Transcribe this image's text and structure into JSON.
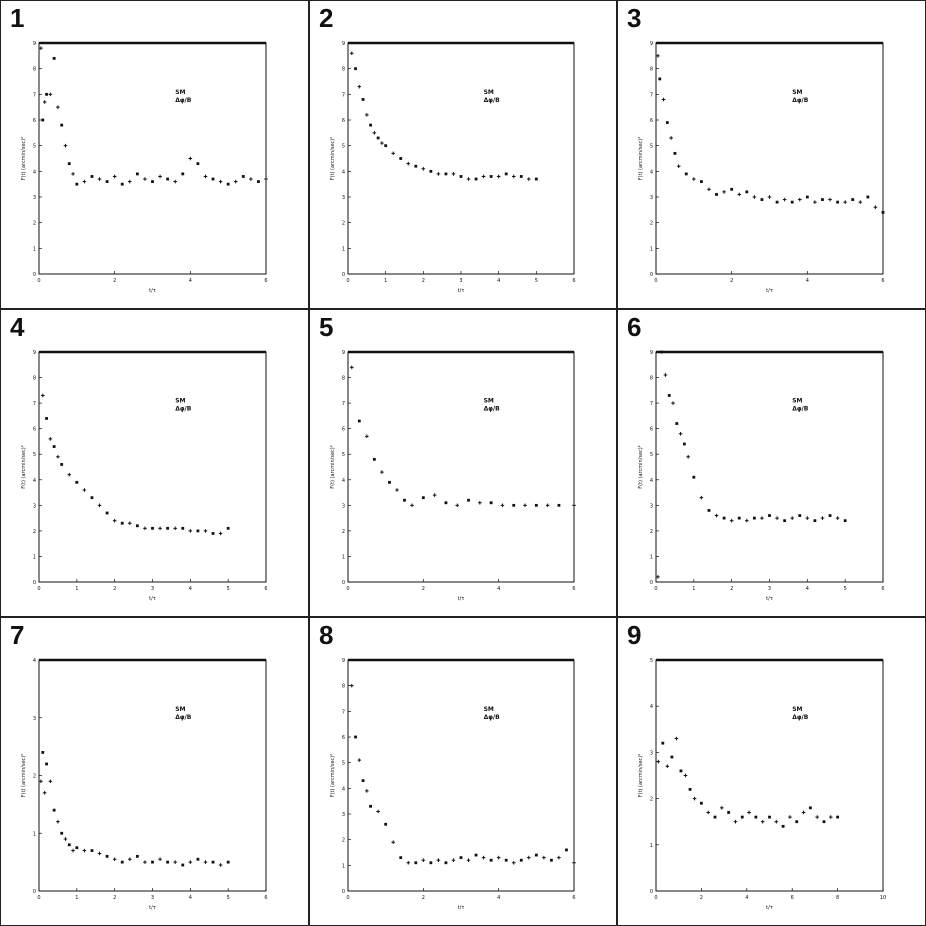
{
  "chart_data": [
    {
      "panel": "1",
      "type": "scatter",
      "xlabel": "t/τ",
      "ylabel": "F(t) (arcmin/sec)²",
      "xlim": [
        0,
        6
      ],
      "ylim": [
        0,
        9
      ],
      "xticks": [
        "0",
        "2",
        "4",
        "6"
      ],
      "yticks": [
        "0",
        "1",
        "2",
        "3",
        "4",
        "5",
        "6",
        "7",
        "8",
        "9"
      ],
      "legend": [
        "SM",
        "Δφ/B"
      ],
      "x": [
        0.05,
        0.1,
        0.15,
        0.2,
        0.3,
        0.4,
        0.5,
        0.6,
        0.7,
        0.8,
        0.9,
        1.0,
        1.2,
        1.4,
        1.6,
        1.8,
        2.0,
        2.2,
        2.4,
        2.6,
        2.8,
        3.0,
        3.2,
        3.4,
        3.6,
        3.8,
        4.0,
        4.2,
        4.4,
        4.6,
        4.8,
        5.0,
        5.2,
        5.4,
        5.6,
        5.8,
        6.0
      ],
      "y": [
        8.8,
        6.0,
        6.7,
        7.0,
        7.0,
        8.4,
        6.5,
        5.8,
        5.0,
        4.3,
        3.9,
        3.5,
        3.6,
        3.8,
        3.7,
        3.6,
        3.8,
        3.5,
        3.6,
        3.9,
        3.7,
        3.6,
        3.8,
        3.7,
        3.6,
        3.9,
        4.5,
        4.3,
        3.8,
        3.7,
        3.6,
        3.5,
        3.6,
        3.8,
        3.7,
        3.6,
        3.7
      ]
    },
    {
      "panel": "2",
      "type": "scatter",
      "xlabel": "t/τ",
      "ylabel": "F(t) (arcmin/sec)²",
      "xlim": [
        0,
        6
      ],
      "ylim": [
        0,
        9
      ],
      "xticks": [
        "0",
        "1",
        "2",
        "3",
        "4",
        "5",
        "6"
      ],
      "yticks": [
        "0",
        "1",
        "2",
        "3",
        "4",
        "5",
        "6",
        "7",
        "8",
        "9"
      ],
      "legend": [
        "SM",
        "Δφ/B"
      ],
      "x": [
        0.1,
        0.2,
        0.3,
        0.4,
        0.5,
        0.6,
        0.7,
        0.8,
        0.9,
        1.0,
        1.2,
        1.4,
        1.6,
        1.8,
        2.0,
        2.2,
        2.4,
        2.6,
        2.8,
        3.0,
        3.2,
        3.4,
        3.6,
        3.8,
        4.0,
        4.2,
        4.4,
        4.6,
        4.8,
        5.0
      ],
      "y": [
        8.6,
        8.0,
        7.3,
        6.8,
        6.2,
        5.8,
        5.5,
        5.3,
        5.1,
        5.0,
        4.7,
        4.5,
        4.3,
        4.2,
        4.1,
        4.0,
        3.9,
        3.9,
        3.9,
        3.8,
        3.7,
        3.7,
        3.8,
        3.8,
        3.8,
        3.9,
        3.8,
        3.8,
        3.7,
        3.7
      ]
    },
    {
      "panel": "3",
      "type": "scatter",
      "xlabel": "t/τ",
      "ylabel": "F(t) (arcmin/sec)²",
      "xlim": [
        0,
        6
      ],
      "ylim": [
        0,
        9
      ],
      "xticks": [
        "0",
        "2",
        "4",
        "6"
      ],
      "yticks": [
        "0",
        "1",
        "2",
        "3",
        "4",
        "5",
        "6",
        "7",
        "8",
        "9"
      ],
      "legend": [
        "SM",
        "Δφ/B"
      ],
      "x": [
        0.05,
        0.1,
        0.2,
        0.3,
        0.4,
        0.5,
        0.6,
        0.8,
        1.0,
        1.2,
        1.4,
        1.6,
        1.8,
        2.0,
        2.2,
        2.4,
        2.6,
        2.8,
        3.0,
        3.2,
        3.4,
        3.6,
        3.8,
        4.0,
        4.2,
        4.4,
        4.6,
        4.8,
        5.0,
        5.2,
        5.4,
        5.6,
        5.8,
        6.0
      ],
      "y": [
        8.5,
        7.6,
        6.8,
        5.9,
        5.3,
        4.7,
        4.2,
        3.9,
        3.7,
        3.6,
        3.3,
        3.1,
        3.2,
        3.3,
        3.1,
        3.2,
        3.0,
        2.9,
        3.0,
        2.8,
        2.9,
        2.8,
        2.9,
        3.0,
        2.8,
        2.9,
        2.9,
        2.8,
        2.8,
        2.9,
        2.8,
        3.0,
        2.6,
        2.4
      ]
    },
    {
      "panel": "4",
      "type": "scatter",
      "xlabel": "t/τ",
      "ylabel": "F(t) (arcmin/sec)²",
      "xlim": [
        0,
        6
      ],
      "ylim": [
        0,
        9
      ],
      "xticks": [
        "0",
        "1",
        "2",
        "3",
        "4",
        "5",
        "6"
      ],
      "yticks": [
        "0",
        "1",
        "2",
        "3",
        "4",
        "5",
        "6",
        "7",
        "8",
        "9"
      ],
      "legend": [
        "SM",
        "Δφ/B"
      ],
      "x": [
        0.1,
        0.2,
        0.3,
        0.4,
        0.5,
        0.6,
        0.8,
        1.0,
        1.2,
        1.4,
        1.6,
        1.8,
        2.0,
        2.2,
        2.4,
        2.6,
        2.8,
        3.0,
        3.2,
        3.4,
        3.6,
        3.8,
        4.0,
        4.2,
        4.4,
        4.6,
        4.8,
        5.0
      ],
      "y": [
        7.3,
        6.4,
        5.6,
        5.3,
        4.9,
        4.6,
        4.2,
        3.9,
        3.6,
        3.3,
        3.0,
        2.7,
        2.4,
        2.3,
        2.3,
        2.2,
        2.1,
        2.1,
        2.1,
        2.1,
        2.1,
        2.1,
        2.0,
        2.0,
        2.0,
        1.9,
        1.9,
        2.1
      ]
    },
    {
      "panel": "5",
      "type": "scatter",
      "xlabel": "t/τ",
      "ylabel": "F(t) (arcmin/sec)²",
      "xlim": [
        0,
        6
      ],
      "ylim": [
        0,
        9
      ],
      "xticks": [
        "0",
        "2",
        "4",
        "6"
      ],
      "yticks": [
        "0",
        "1",
        "2",
        "3",
        "4",
        "5",
        "6",
        "7",
        "8",
        "9"
      ],
      "legend": [
        "SM",
        "Δφ/B"
      ],
      "x": [
        0.1,
        0.3,
        0.5,
        0.7,
        0.9,
        1.1,
        1.3,
        1.5,
        1.7,
        2.0,
        2.3,
        2.6,
        2.9,
        3.2,
        3.5,
        3.8,
        4.1,
        4.4,
        4.7,
        5.0,
        5.3,
        5.6,
        6.0
      ],
      "y": [
        8.4,
        6.3,
        5.7,
        4.8,
        4.3,
        3.9,
        3.6,
        3.2,
        3.0,
        3.3,
        3.4,
        3.1,
        3.0,
        3.2,
        3.1,
        3.1,
        3.0,
        3.0,
        3.0,
        3.0,
        3.0,
        3.0,
        3.0
      ]
    },
    {
      "panel": "6",
      "type": "scatter",
      "xlabel": "t/τ",
      "ylabel": "F(t) (arcmin/sec)²",
      "xlim": [
        0,
        6
      ],
      "ylim": [
        0,
        9
      ],
      "xticks": [
        "0",
        "1",
        "2",
        "3",
        "4",
        "5",
        "6"
      ],
      "yticks": [
        "0",
        "1",
        "2",
        "3",
        "4",
        "5",
        "6",
        "7",
        "8",
        "9"
      ],
      "legend": [
        "SM",
        "Δφ/B"
      ],
      "x": [
        0.05,
        0.15,
        0.25,
        0.35,
        0.45,
        0.55,
        0.65,
        0.75,
        0.85,
        1.0,
        1.2,
        1.4,
        1.6,
        1.8,
        2.0,
        2.2,
        2.4,
        2.6,
        2.8,
        3.0,
        3.2,
        3.4,
        3.6,
        3.8,
        4.0,
        4.2,
        4.4,
        4.6,
        4.8,
        5.0
      ],
      "y": [
        0.2,
        9.0,
        8.1,
        7.3,
        7.0,
        6.2,
        5.8,
        5.4,
        4.9,
        4.1,
        3.3,
        2.8,
        2.6,
        2.5,
        2.4,
        2.5,
        2.4,
        2.5,
        2.5,
        2.6,
        2.5,
        2.4,
        2.5,
        2.6,
        2.5,
        2.4,
        2.5,
        2.6,
        2.5,
        2.4
      ]
    },
    {
      "panel": "7",
      "type": "scatter",
      "xlabel": "t/τ",
      "ylabel": "F(t) (arcmin/sec)²",
      "xlim": [
        0,
        6
      ],
      "ylim": [
        0,
        4
      ],
      "xticks": [
        "0",
        "1",
        "2",
        "3",
        "4",
        "5",
        "6"
      ],
      "yticks": [
        "0",
        "1",
        "2",
        "3",
        "4"
      ],
      "legend": [
        "SM",
        "Δφ/B"
      ],
      "x": [
        0.05,
        0.1,
        0.15,
        0.2,
        0.3,
        0.4,
        0.5,
        0.6,
        0.7,
        0.8,
        0.9,
        1.0,
        1.2,
        1.4,
        1.6,
        1.8,
        2.0,
        2.2,
        2.4,
        2.6,
        2.8,
        3.0,
        3.2,
        3.4,
        3.6,
        3.8,
        4.0,
        4.2,
        4.4,
        4.6,
        4.8,
        5.0
      ],
      "y": [
        1.9,
        2.4,
        1.7,
        2.2,
        1.9,
        1.4,
        1.2,
        1.0,
        0.9,
        0.8,
        0.7,
        0.75,
        0.7,
        0.7,
        0.65,
        0.6,
        0.55,
        0.5,
        0.55,
        0.6,
        0.5,
        0.5,
        0.55,
        0.5,
        0.5,
        0.45,
        0.5,
        0.55,
        0.5,
        0.5,
        0.45,
        0.5
      ]
    },
    {
      "panel": "8",
      "type": "scatter",
      "xlabel": "t/τ",
      "ylabel": "F(t) (arcmin/sec)²",
      "xlim": [
        0,
        6
      ],
      "ylim": [
        0,
        9
      ],
      "xticks": [
        "0",
        "2",
        "4",
        "6"
      ],
      "yticks": [
        "0",
        "1",
        "2",
        "3",
        "4",
        "5",
        "6",
        "7",
        "8",
        "9"
      ],
      "legend": [
        "SM",
        "Δφ/B"
      ],
      "x": [
        0.1,
        0.2,
        0.3,
        0.4,
        0.5,
        0.6,
        0.8,
        1.0,
        1.2,
        1.4,
        1.6,
        1.8,
        2.0,
        2.2,
        2.4,
        2.6,
        2.8,
        3.0,
        3.2,
        3.4,
        3.6,
        3.8,
        4.0,
        4.2,
        4.4,
        4.6,
        4.8,
        5.0,
        5.2,
        5.4,
        5.6,
        5.8,
        6.0
      ],
      "y": [
        8.0,
        6.0,
        5.1,
        4.3,
        3.9,
        3.3,
        3.1,
        2.6,
        1.9,
        1.3,
        1.1,
        1.1,
        1.2,
        1.1,
        1.2,
        1.1,
        1.2,
        1.3,
        1.2,
        1.4,
        1.3,
        1.2,
        1.3,
        1.2,
        1.1,
        1.2,
        1.3,
        1.4,
        1.3,
        1.2,
        1.3,
        1.6,
        1.1
      ]
    },
    {
      "panel": "9",
      "type": "scatter",
      "xlabel": "t/τ",
      "ylabel": "F(t) (arcmin/sec)²",
      "xlim": [
        0,
        10
      ],
      "ylim": [
        0,
        5
      ],
      "xticks": [
        "0",
        "2",
        "4",
        "6",
        "8",
        "10"
      ],
      "yticks": [
        "0",
        "1",
        "2",
        "3",
        "4",
        "5"
      ],
      "legend": [
        "SM",
        "Δφ/B"
      ],
      "x": [
        0.1,
        0.3,
        0.5,
        0.7,
        0.9,
        1.1,
        1.3,
        1.5,
        1.7,
        2.0,
        2.3,
        2.6,
        2.9,
        3.2,
        3.5,
        3.8,
        4.1,
        4.4,
        4.7,
        5.0,
        5.3,
        5.6,
        5.9,
        6.2,
        6.5,
        6.8,
        7.1,
        7.4,
        7.7,
        8.0
      ],
      "y": [
        2.8,
        3.2,
        2.7,
        2.9,
        3.3,
        2.6,
        2.5,
        2.2,
        2.0,
        1.9,
        1.7,
        1.6,
        1.8,
        1.7,
        1.5,
        1.6,
        1.7,
        1.6,
        1.5,
        1.6,
        1.5,
        1.4,
        1.6,
        1.5,
        1.7,
        1.8,
        1.6,
        1.5,
        1.6,
        1.6
      ]
    }
  ]
}
